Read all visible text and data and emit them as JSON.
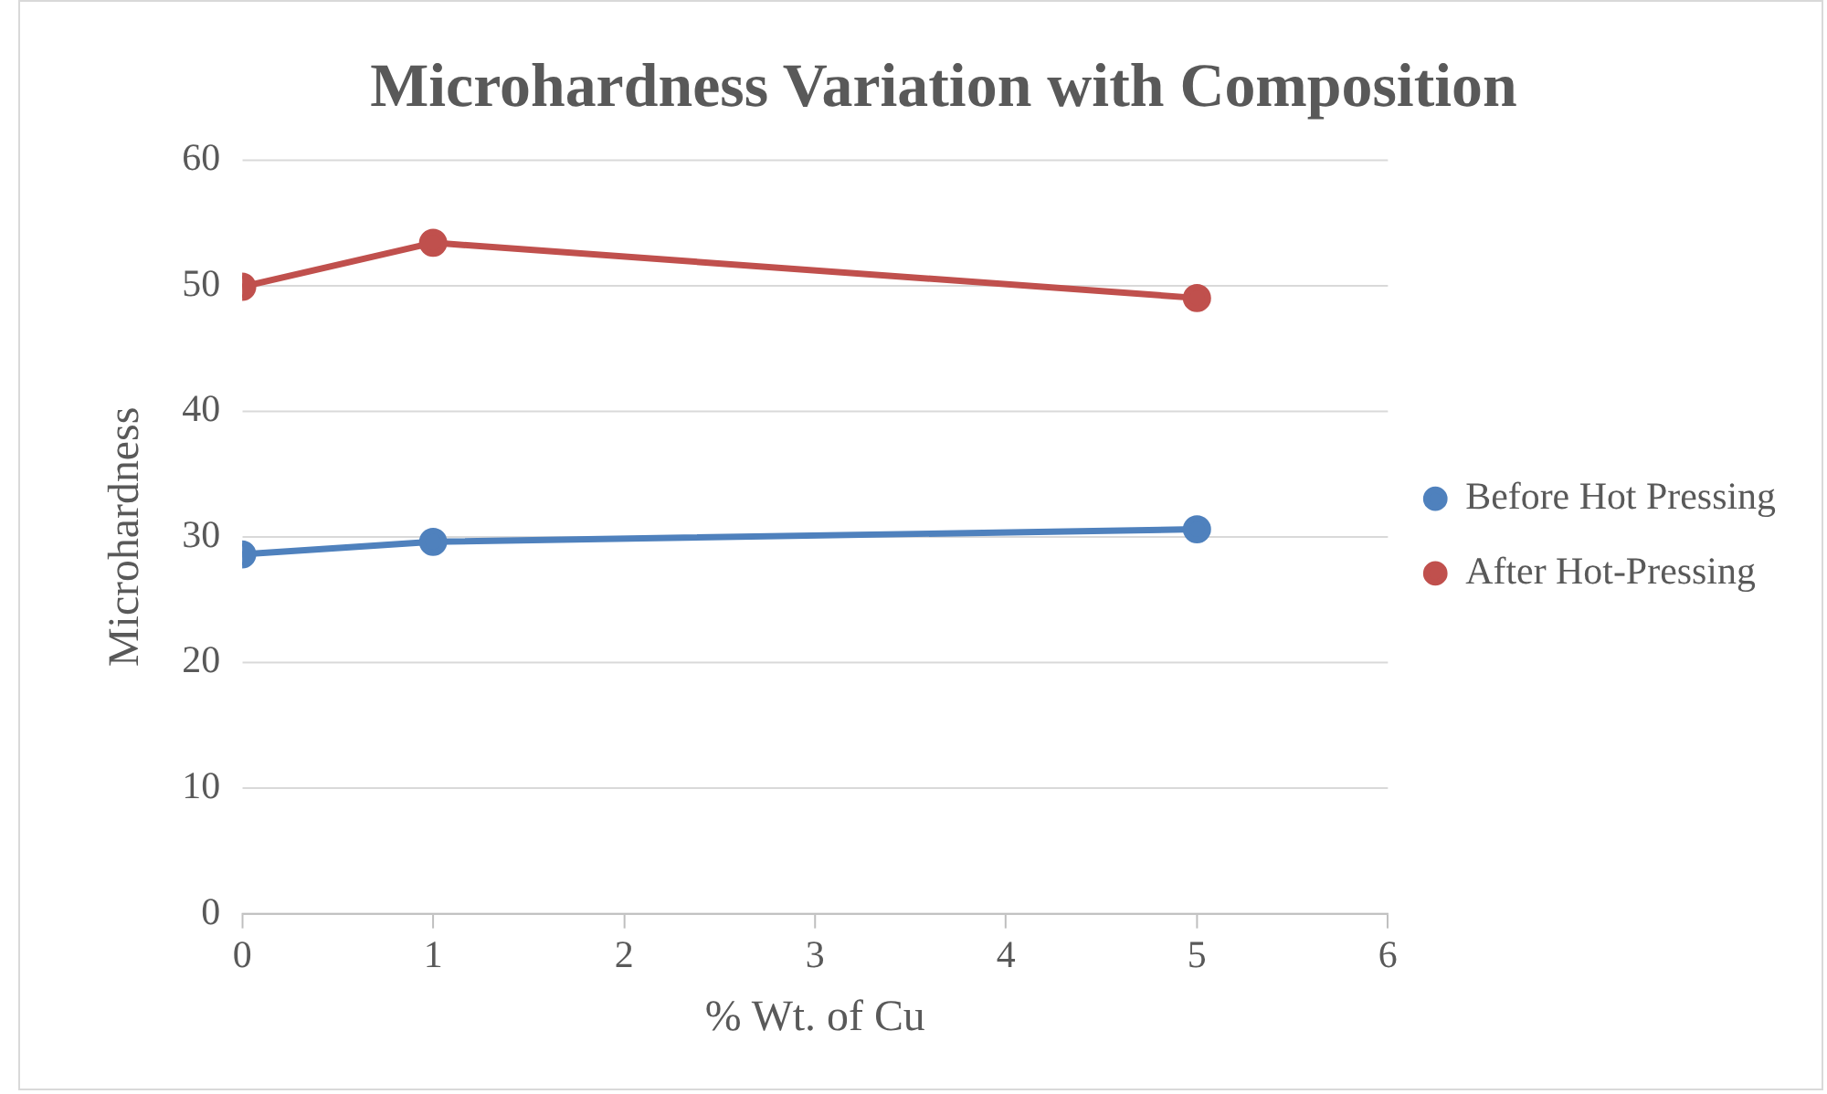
{
  "chart_data": {
    "type": "line",
    "title": "Microhardness Variation with Composition",
    "xlabel": "% Wt. of Cu",
    "ylabel": "Microhardness",
    "x": [
      0,
      1,
      5
    ],
    "series": [
      {
        "name": "Before Hot Pressing",
        "color": "#4f81bd",
        "values": [
          28.6,
          29.6,
          30.6
        ]
      },
      {
        "name": "After Hot-Pressing",
        "color": "#c0504d",
        "values": [
          49.9,
          53.4,
          49.0
        ]
      }
    ],
    "xlim": [
      0,
      6
    ],
    "xticks": [
      0,
      1,
      2,
      3,
      4,
      5,
      6
    ],
    "ylim": [
      0,
      60
    ],
    "yticks": [
      0,
      10,
      20,
      30,
      40,
      50,
      60
    ],
    "grid": "y",
    "legend": "right",
    "marker": "circle",
    "line_style": "solid"
  }
}
